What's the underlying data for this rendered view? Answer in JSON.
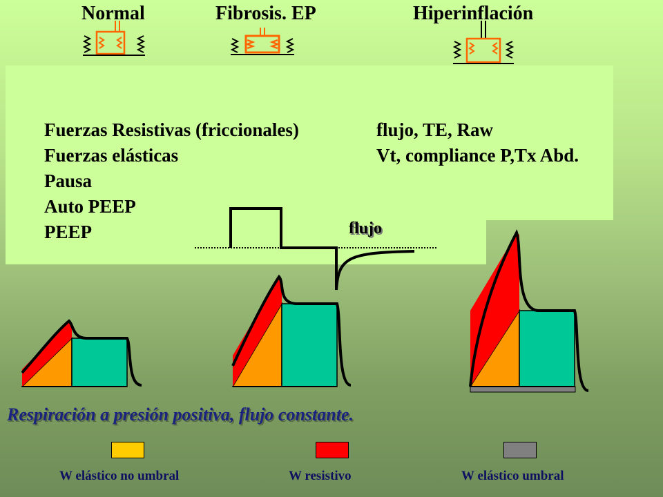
{
  "headings": {
    "normal": "Normal",
    "fibrosis": "Fibrosis. EP",
    "hiper": "Hiperinflación"
  },
  "forces": {
    "left": [
      "Fuerzas Resistivas (friccionales)",
      "Fuerzas elásticas",
      "Pausa",
      "Auto PEEP",
      "PEEP"
    ],
    "right": [
      "flujo, TE, Raw",
      "Vt, compliance P,Tx Abd."
    ]
  },
  "flow_label": "flujo",
  "caption": "Respiración a presión positiva, flujo constante.",
  "legend": [
    {
      "label": "W elástico no umbral",
      "color": "#ffcc00"
    },
    {
      "label": "W resistivo",
      "color": "#ff0000"
    },
    {
      "label": "W elástico umbral",
      "color": "#808080"
    }
  ],
  "colors": {
    "elastic": "#ff9900",
    "resistive": "#ff0000",
    "plateau": "#00c896",
    "threshold": "#808080",
    "spring": "#ff6600"
  },
  "icons": [
    "lung-unit-normal-icon",
    "lung-unit-fibrosis-icon",
    "lung-unit-hyperinflation-icon"
  ]
}
